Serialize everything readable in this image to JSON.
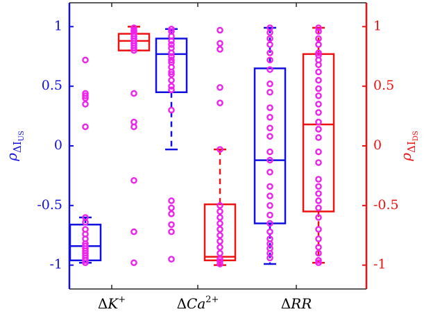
{
  "chart_data": {
    "type": "box",
    "categories": [
      "ΔK⁺",
      "ΔCa²⁺",
      "ΔRR"
    ],
    "category_parts": [
      {
        "delta": "Δ",
        "base": "K",
        "sup": "+"
      },
      {
        "delta": "Δ",
        "base": "Ca",
        "sup": "2+"
      },
      {
        "delta": "Δ",
        "base": "RR",
        "sup": ""
      }
    ],
    "ylim": [
      -1.2,
      1.2
    ],
    "yticks": [
      -1,
      -0.5,
      0,
      0.5,
      1
    ],
    "ytick_labels": [
      "-1",
      "-0.5",
      "0",
      "0.5",
      "1"
    ],
    "ylabel_left": {
      "greek": "ρ",
      "sub": "ΔI",
      "subsub": "US"
    },
    "ylabel_right": {
      "greek": "ρ",
      "sub": "ΔI",
      "subsub": "DS"
    },
    "colors": {
      "left": "#1010e0",
      "right": "#ee1111",
      "points": "#ee22ee"
    },
    "series": [
      {
        "axis": "left",
        "boxes": [
          {
            "category": 0,
            "whisker_low": -0.98,
            "q1": -0.96,
            "median": -0.84,
            "q3": -0.66,
            "whisker_high": -0.6
          },
          {
            "category": 1,
            "whisker_low": -0.03,
            "q1": 0.45,
            "median": 0.77,
            "q3": 0.9,
            "whisker_high": 0.98
          },
          {
            "category": 2,
            "whisker_low": -0.99,
            "q1": -0.65,
            "median": -0.12,
            "q3": 0.65,
            "whisker_high": 0.99
          }
        ],
        "points": [
          [
            0.72,
            0.44,
            0.42,
            0.4,
            0.35,
            0.16,
            -0.6,
            -0.64,
            -0.7,
            -0.74,
            -0.78,
            -0.82,
            -0.84,
            -0.86,
            -0.88,
            -0.9,
            -0.92,
            -0.94,
            -0.96,
            -0.98
          ],
          [
            0.98,
            0.96,
            0.92,
            0.88,
            0.85,
            0.82,
            0.78,
            0.75,
            0.72,
            0.7,
            0.66,
            0.62,
            0.6,
            0.55,
            0.5,
            0.47,
            0.3,
            -0.46,
            -0.52,
            -0.57,
            -0.66,
            -0.72,
            -0.95
          ],
          [
            0.99,
            0.95,
            0.9,
            0.85,
            0.78,
            0.72,
            0.64,
            0.52,
            0.45,
            0.32,
            0.24,
            0.15,
            0.08,
            -0.05,
            -0.12,
            -0.22,
            -0.34,
            -0.42,
            -0.5,
            -0.58,
            -0.65,
            -0.72,
            -0.78,
            -0.82,
            -0.86,
            -0.9,
            -0.94
          ]
        ]
      },
      {
        "axis": "right",
        "boxes": [
          {
            "category": 0,
            "whisker_low": 0.8,
            "q1": 0.8,
            "median": 0.88,
            "q3": 0.94,
            "whisker_high": 1.0
          },
          {
            "category": 1,
            "whisker_low": -1.0,
            "q1": -0.96,
            "median": -0.93,
            "q3": -0.49,
            "whisker_high": -0.03
          },
          {
            "category": 2,
            "whisker_low": -0.98,
            "q1": -0.55,
            "median": 0.18,
            "q3": 0.77,
            "whisker_high": 0.99
          }
        ],
        "points": [
          [
            0.99,
            0.97,
            0.96,
            0.94,
            0.92,
            0.9,
            0.88,
            0.86,
            0.84,
            0.82,
            0.8,
            0.44,
            0.2,
            0.16,
            -0.29,
            -0.72,
            -0.98
          ],
          [
            0.97,
            0.86,
            0.81,
            0.49,
            0.36,
            -0.03,
            -0.5,
            -0.55,
            -0.6,
            -0.65,
            -0.7,
            -0.75,
            -0.8,
            -0.85,
            -0.9,
            -0.95,
            -0.97,
            -0.99
          ],
          [
            0.99,
            0.96,
            0.9,
            0.85,
            0.78,
            0.76,
            0.72,
            0.68,
            0.62,
            0.55,
            0.48,
            0.42,
            0.35,
            0.28,
            0.2,
            0.14,
            0.07,
            -0.05,
            -0.14,
            -0.28,
            -0.34,
            -0.4,
            -0.46,
            -0.52,
            -0.6,
            -0.7,
            -0.78,
            -0.85,
            -0.9,
            -0.96,
            -0.98
          ]
        ]
      }
    ]
  }
}
